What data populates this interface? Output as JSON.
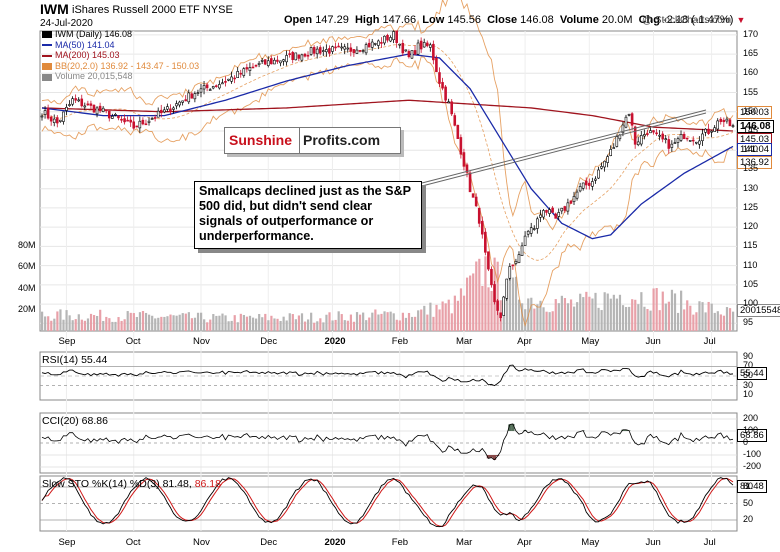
{
  "header": {
    "ticker": "IWM",
    "name": "iShares Russell 2000 ETF  NYSE",
    "date": "24-Jul-2020",
    "open_label": "Open",
    "open": "147.29",
    "high_label": "High",
    "high": "147.66",
    "low_label": "Low",
    "low": "145.56",
    "close_label": "Close",
    "close": "146.08",
    "volume_label": "Volume",
    "volume": "20.0M",
    "chg_label": "Chg",
    "chg": "-2.18 (-1.47%)",
    "chg_icon": "down-triangle-icon",
    "watermark": "@ StockCharts.com"
  },
  "legend": [
    {
      "text": "IWM (Daily) 146.08",
      "color": "#000000",
      "icon": "candle-icon"
    },
    {
      "text": "MA(50) 141.04",
      "color": "#1a2aa8",
      "icon": "line-icon"
    },
    {
      "text": "MA(200) 145.03",
      "color": "#a0141e",
      "icon": "line-icon"
    },
    {
      "text": "BB(20,2.0) 136.92 - 143.47 - 150.03",
      "color": "#e08a3c",
      "icon": "band-icon"
    },
    {
      "text": "Volume 20,015,548",
      "color": "#888888",
      "icon": "volume-icon"
    }
  ],
  "annotation": {
    "note": "Smallcaps declined just as the S&P 500 did, but didn't send clear signals of outperformance or underperformance.",
    "logo_a": "Sunshine",
    "logo_b": "Profits.com"
  },
  "badges": {
    "bb_upper": "150.03",
    "close": "146.08",
    "ma200": "145.03",
    "ma50": "141.04",
    "bb_lower": "136.92",
    "volume": "20015548",
    "rsi": "55.44",
    "cci": "68.86",
    "sto": "81.48"
  },
  "panes": {
    "rsi": "RSI(14) 55.44",
    "cci": "CCI(20) 68.86",
    "sto_a": "Slow STO %K(14) %D(3) 81.48,",
    "sto_b": "86.18"
  },
  "colors": {
    "candle_up": "#000000",
    "candle_down": "#c8102e",
    "ma50": "#1a2aa8",
    "ma200": "#a0141e",
    "bb": "#e08a3c",
    "vol_up": "#b5b5b5",
    "vol_down": "#e8a0a8",
    "cci_fill": "#55705a",
    "cci_neg_fill": "#8a4a4a",
    "sto_d": "#d01818"
  },
  "chart_data": {
    "type": "candlestick",
    "x_labels": [
      "Sep",
      "Oct",
      "Nov",
      "Dec",
      "2020",
      "Feb",
      "Mar",
      "Apr",
      "May",
      "Jun",
      "Jul"
    ],
    "price_axis": {
      "ticks": [
        95,
        100,
        105,
        110,
        115,
        120,
        125,
        130,
        135,
        140,
        145,
        150,
        155,
        160,
        165,
        170
      ],
      "ylim": [
        93,
        171
      ]
    },
    "volume_axis": {
      "ticks": [
        "20M",
        "40M",
        "60M",
        "80M"
      ],
      "ylim": [
        0,
        85
      ]
    },
    "price_anchors": [
      {
        "t": 0,
        "v": 150
      },
      {
        "t": 5,
        "v": 147
      },
      {
        "t": 10,
        "v": 153
      },
      {
        "t": 20,
        "v": 150
      },
      {
        "t": 30,
        "v": 146
      },
      {
        "t": 40,
        "v": 150
      },
      {
        "t": 50,
        "v": 155
      },
      {
        "t": 60,
        "v": 158
      },
      {
        "t": 70,
        "v": 162
      },
      {
        "t": 80,
        "v": 164
      },
      {
        "t": 90,
        "v": 166
      },
      {
        "t": 100,
        "v": 166
      },
      {
        "t": 110,
        "v": 168
      },
      {
        "t": 115,
        "v": 170
      },
      {
        "t": 120,
        "v": 164
      },
      {
        "t": 123,
        "v": 167
      },
      {
        "t": 127,
        "v": 167
      },
      {
        "t": 130,
        "v": 158
      },
      {
        "t": 133,
        "v": 152
      },
      {
        "t": 137,
        "v": 140
      },
      {
        "t": 140,
        "v": 130
      },
      {
        "t": 143,
        "v": 122
      },
      {
        "t": 146,
        "v": 108
      },
      {
        "t": 148,
        "v": 100
      },
      {
        "t": 150,
        "v": 97
      },
      {
        "t": 153,
        "v": 110
      },
      {
        "t": 156,
        "v": 112
      },
      {
        "t": 158,
        "v": 118
      },
      {
        "t": 161,
        "v": 120
      },
      {
        "t": 164,
        "v": 125
      },
      {
        "t": 168,
        "v": 122
      },
      {
        "t": 172,
        "v": 126
      },
      {
        "t": 176,
        "v": 130
      },
      {
        "t": 180,
        "v": 132
      },
      {
        "t": 184,
        "v": 137
      },
      {
        "t": 187,
        "v": 141
      },
      {
        "t": 190,
        "v": 147
      },
      {
        "t": 192,
        "v": 150
      },
      {
        "t": 194,
        "v": 142
      },
      {
        "t": 198,
        "v": 145
      },
      {
        "t": 202,
        "v": 143
      },
      {
        "t": 206,
        "v": 141
      },
      {
        "t": 210,
        "v": 144
      },
      {
        "t": 214,
        "v": 143
      },
      {
        "t": 218,
        "v": 145
      },
      {
        "t": 222,
        "v": 148
      },
      {
        "t": 226,
        "v": 146
      }
    ],
    "ma50_anchors": [
      {
        "t": 0,
        "v": 151
      },
      {
        "t": 20,
        "v": 149
      },
      {
        "t": 40,
        "v": 149
      },
      {
        "t": 60,
        "v": 153
      },
      {
        "t": 80,
        "v": 158
      },
      {
        "t": 100,
        "v": 162
      },
      {
        "t": 120,
        "v": 165
      },
      {
        "t": 130,
        "v": 164
      },
      {
        "t": 140,
        "v": 156
      },
      {
        "t": 150,
        "v": 143
      },
      {
        "t": 160,
        "v": 130
      },
      {
        "t": 170,
        "v": 121
      },
      {
        "t": 180,
        "v": 117
      },
      {
        "t": 186,
        "v": 118
      },
      {
        "t": 196,
        "v": 126
      },
      {
        "t": 210,
        "v": 134
      },
      {
        "t": 226,
        "v": 141
      }
    ],
    "ma200_anchors": [
      {
        "t": 0,
        "v": 151
      },
      {
        "t": 40,
        "v": 150
      },
      {
        "t": 80,
        "v": 151
      },
      {
        "t": 120,
        "v": 153
      },
      {
        "t": 140,
        "v": 152
      },
      {
        "t": 160,
        "v": 151
      },
      {
        "t": 180,
        "v": 149
      },
      {
        "t": 200,
        "v": 146
      },
      {
        "t": 226,
        "v": 145
      }
    ],
    "volume_anchors": [
      {
        "t": 0,
        "v": 15
      },
      {
        "t": 30,
        "v": 14
      },
      {
        "t": 60,
        "v": 12
      },
      {
        "t": 90,
        "v": 13
      },
      {
        "t": 120,
        "v": 16
      },
      {
        "t": 135,
        "v": 25
      },
      {
        "t": 145,
        "v": 60
      },
      {
        "t": 150,
        "v": 45
      },
      {
        "t": 160,
        "v": 30
      },
      {
        "t": 175,
        "v": 25
      },
      {
        "t": 190,
        "v": 35
      },
      {
        "t": 205,
        "v": 30
      },
      {
        "t": 226,
        "v": 16
      }
    ],
    "rsi": {
      "ticks": [
        90,
        70,
        50,
        30,
        10
      ],
      "value": 55.44
    },
    "cci": {
      "ticks": [
        200,
        100,
        0,
        -100,
        -200
      ],
      "value": 68.86
    },
    "sto": {
      "ticks": [
        80,
        50,
        20
      ],
      "k": 81.48,
      "d": 86.18
    }
  }
}
